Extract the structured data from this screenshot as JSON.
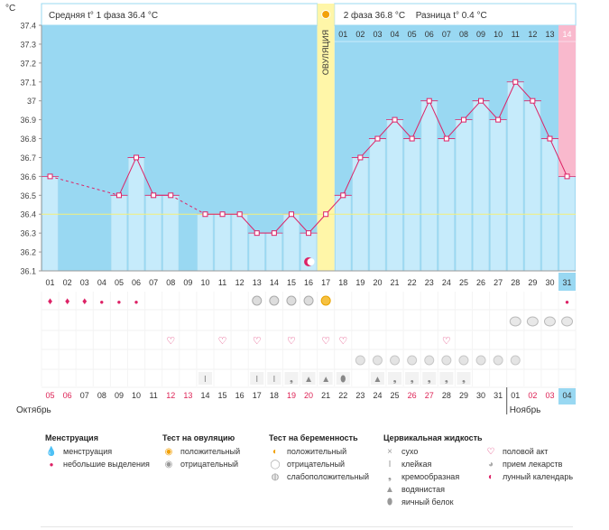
{
  "chart_data": {
    "type": "line",
    "y_unit": "°C",
    "ylim": [
      36.1,
      37.4
    ],
    "y_ticks": [
      "37.4",
      "37.3",
      "37.2",
      "37.1",
      "37",
      "36.9",
      "36.8",
      "36.7",
      "36.6",
      "36.5",
      "36.4",
      "36.3",
      "36.2",
      "36.1"
    ],
    "phase1_label": "Средняя t° 1 фаза",
    "phase1_value": "36.4 °C",
    "phase2_label": "2 фаза",
    "phase2_value": "36.8 °C",
    "diff_label": "Разница t°",
    "diff_value": "0.4 °C",
    "ovulation_label": "ОВУЛЯЦИЯ",
    "ovulation_day": 17,
    "coverline": 36.4,
    "cycle_days": [
      "01",
      "02",
      "03",
      "04",
      "05",
      "06",
      "07",
      "08",
      "09",
      "10",
      "11",
      "12",
      "13",
      "14",
      "15",
      "16",
      "17",
      "18",
      "19",
      "20",
      "21",
      "22",
      "23",
      "24",
      "25",
      "26",
      "27",
      "28",
      "29",
      "30",
      "31"
    ],
    "post_ovulation_days": [
      "01",
      "02",
      "03",
      "04",
      "05",
      "06",
      "07",
      "08",
      "09",
      "10",
      "11",
      "12",
      "13",
      "14"
    ],
    "temperatures": [
      36.6,
      null,
      null,
      null,
      36.5,
      36.7,
      36.5,
      36.5,
      null,
      36.4,
      36.4,
      36.4,
      36.3,
      36.3,
      36.4,
      36.3,
      36.4,
      36.5,
      36.7,
      36.8,
      36.9,
      36.8,
      37.0,
      36.8,
      36.9,
      37.0,
      36.9,
      37.1,
      37.0,
      36.8,
      36.6
    ],
    "dates": [
      "05",
      "06",
      "07",
      "08",
      "09",
      "10",
      "11",
      "12",
      "13",
      "14",
      "15",
      "16",
      "17",
      "18",
      "19",
      "20",
      "21",
      "22",
      "23",
      "24",
      "25",
      "26",
      "27",
      "28",
      "29",
      "30",
      "31",
      "01",
      "02",
      "03",
      "04"
    ],
    "weekend_dates": [
      "05",
      "06",
      "12",
      "13",
      "19",
      "20",
      "26",
      "27",
      "02",
      "03"
    ],
    "month_start": "Октябрь",
    "month_end": "Ноябрь",
    "rows": {
      "menstruation": {
        "1": "big",
        "2": "big",
        "3": "big",
        "4": "small",
        "5": "small",
        "6": "small",
        "31": "small"
      },
      "ovulation_test": {
        "13": "neg",
        "14": "neg",
        "15": "neg",
        "16": "neg",
        "17": "pos"
      },
      "pregnancy_test": {
        "29": "weak",
        "30": "weak",
        "31": "weak",
        "28": "neg"
      },
      "intercourse": [
        8,
        11,
        13,
        15,
        17,
        18,
        24
      ],
      "medication": [
        19,
        20,
        21,
        22,
        23,
        24,
        25,
        26,
        27,
        28
      ],
      "fluid": {
        "10": "sticky",
        "13": "sticky",
        "14": "sticky",
        "15": "creamy",
        "16": "watery",
        "17": "watery",
        "18": "egg",
        "20": "watery",
        "21": "creamy",
        "22": "creamy",
        "23": "creamy",
        "24": "creamy",
        "25": "creamy"
      }
    }
  },
  "legend": {
    "menstruation": {
      "title": "Менструация",
      "items": [
        "менструация",
        "небольшие выделения"
      ]
    },
    "ovulation_test": {
      "title": "Тест на овуляцию",
      "items": [
        "положительный",
        "отрицательный"
      ]
    },
    "pregnancy_test": {
      "title": "Тест на беременность",
      "items": [
        "положительный",
        "отрицательный",
        "слабоположительный"
      ]
    },
    "cervical": {
      "title": "Цервикальная жидкость",
      "items": [
        "сухо",
        "клейкая",
        "кремообразная",
        "водянистая",
        "яичный белок"
      ]
    },
    "other": {
      "items": [
        "половой акт",
        "прием лекарств",
        "лунный календарь"
      ]
    }
  },
  "colors": {
    "phase1_bg": "#99d8f2",
    "phase2_bg": "#d3effb",
    "bar": "#c6ebfb",
    "ovulation": "#fff6a8",
    "last_day": "#f9b9cd",
    "line": "#dd2266",
    "weekend": "#dd2255"
  }
}
